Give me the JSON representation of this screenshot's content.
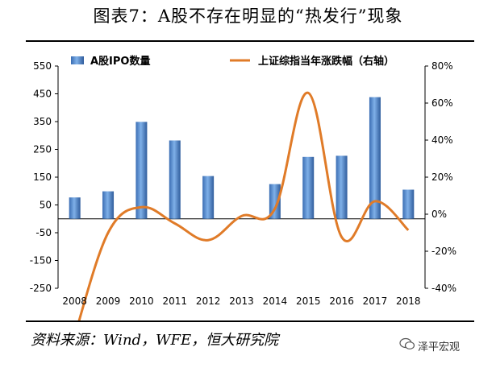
{
  "page_title": "图表7：A股不存在明显的“热发行”现象",
  "source": "资料来源：Wind，WFE，恒大研究院",
  "watermark": "泽平宏观",
  "chart_data": {
    "type": "bar",
    "categories": [
      "2008",
      "2009",
      "2010",
      "2011",
      "2012",
      "2013",
      "2014",
      "2015",
      "2016",
      "2017",
      "2018"
    ],
    "series": [
      {
        "name": "A股IPO数量",
        "type": "bar",
        "axis": "left",
        "color": "#4a7fc4",
        "values": [
          77,
          99,
          349,
          282,
          154,
          0,
          125,
          223,
          227,
          438,
          105
        ]
      },
      {
        "name": "上证综指当年涨跌幅（右轴）",
        "type": "line",
        "axis": "right",
        "color": "#e07b28",
        "values": [
          -65.4,
          -10.0,
          3.8,
          -5.0,
          -14.0,
          -1.0,
          3.0,
          65.5,
          -12.3,
          7.0,
          -8.6
        ]
      }
    ],
    "left_axis": {
      "min": -250,
      "max": 550,
      "ticks": [
        -250,
        -150,
        -50,
        50,
        150,
        250,
        350,
        450,
        550
      ]
    },
    "right_axis": {
      "min": -0.4,
      "max": 0.8,
      "ticks": [
        "-40%",
        "-20%",
        "0%",
        "20%",
        "40%",
        "60%",
        "80%"
      ]
    },
    "legend_position": "top"
  }
}
